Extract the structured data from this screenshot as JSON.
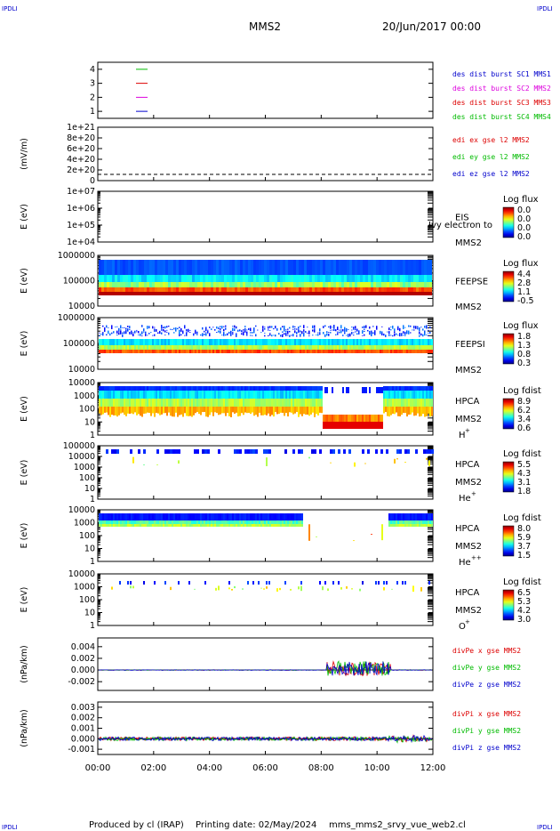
{
  "corner_label": "IPDLI",
  "title": "MMS2",
  "date": "20/Jun/2017 00:00",
  "footer": {
    "produced": "Produced by cl (IRAP)",
    "printing": "Printing date: 02/May/2024",
    "file": "mms_mms2_srvy_vue_web2.cl"
  },
  "chart_data": [
    {
      "type": "line",
      "panel": "burst",
      "ylim": [
        0.5,
        4.5
      ],
      "yticks": [
        "1",
        "2",
        "3",
        "4"
      ],
      "series": [
        {
          "name": "des dist burst SC1 MMS1",
          "color": "#0000cc",
          "y": 1
        },
        {
          "name": "des dist burst SC2 MMS2",
          "color": "#dd00dd",
          "y": 2
        },
        {
          "name": "des dist burst SC3 MMS3",
          "color": "#dd0000",
          "y": 3
        },
        {
          "name": "des dist burst SC4 MMS4",
          "color": "#00bb00",
          "y": 4
        }
      ]
    },
    {
      "type": "line",
      "panel": "edi",
      "ylabel": "(mV/m)",
      "yticks": [
        "0",
        "2e+20",
        "4e+20",
        "6e+20",
        "8e+20",
        "1e+21"
      ],
      "series": [
        {
          "name": "edi ex gse l2 MMS2",
          "color": "#dd0000"
        },
        {
          "name": "edi ey gse l2 MMS2",
          "color": "#00bb00"
        },
        {
          "name": "edi ez gse l2 MMS2",
          "color": "#0000cc"
        }
      ]
    },
    {
      "type": "heatmap",
      "panel": "eis",
      "ylabel": "E (eV)",
      "yticks": [
        "1e+04",
        "1e+05",
        "1e+06",
        "1e+07"
      ],
      "scale": "log",
      "side_label": "EIS",
      "sc_label": "MMS2",
      "overlay_text": "Jvy electron to",
      "colorbar": {
        "title": "Log flux",
        "ticks": [
          "0.0",
          "0.0",
          "0.0",
          "0.0"
        ]
      }
    },
    {
      "type": "heatmap",
      "panel": "feepse",
      "ylabel": "E (eV)",
      "yticks": [
        "10000",
        "100000",
        "1000000"
      ],
      "scale": "log",
      "side_label": "FEEPSE",
      "sc_label": "MMS2",
      "colorbar": {
        "title": "Log flux",
        "ticks": [
          "4.4",
          "2.8",
          "1.1",
          "-0.5"
        ]
      }
    },
    {
      "type": "heatmap",
      "panel": "feepsi",
      "ylabel": "E (eV)",
      "yticks": [
        "10000",
        "100000",
        "1000000"
      ],
      "scale": "log",
      "side_label": "FEEPSI",
      "sc_label": "MMS2",
      "colorbar": {
        "title": "Log flux",
        "ticks": [
          "1.8",
          "1.3",
          "0.8",
          "0.3"
        ]
      }
    },
    {
      "type": "heatmap",
      "panel": "hpca_h",
      "ylabel": "E (eV)",
      "yticks": [
        "1",
        "10",
        "100",
        "1000",
        "10000"
      ],
      "scale": "log",
      "side_label": "HPCA",
      "sc_label": "MMS2",
      "species": "H",
      "charge": "+",
      "colorbar": {
        "title": "Log fdist",
        "ticks": [
          "8.9",
          "6.2",
          "3.4",
          "0.6"
        ]
      }
    },
    {
      "type": "heatmap",
      "panel": "hpca_he",
      "ylabel": "E (eV)",
      "yticks": [
        "1",
        "10",
        "100",
        "1000",
        "10000",
        "100000"
      ],
      "scale": "log",
      "side_label": "HPCA",
      "sc_label": "MMS2",
      "species": "He",
      "charge": "+",
      "colorbar": {
        "title": "Log fdist",
        "ticks": [
          "5.5",
          "4.3",
          "3.1",
          "1.8"
        ]
      }
    },
    {
      "type": "heatmap",
      "panel": "hpca_he2",
      "ylabel": "E (eV)",
      "yticks": [
        "1",
        "10",
        "100",
        "1000",
        "10000"
      ],
      "scale": "log",
      "side_label": "HPCA",
      "sc_label": "MMS2",
      "species": "He",
      "charge": "++",
      "colorbar": {
        "title": "Log fdist",
        "ticks": [
          "8.0",
          "5.9",
          "3.7",
          "1.5"
        ]
      }
    },
    {
      "type": "heatmap",
      "panel": "hpca_o",
      "ylabel": "E (eV)",
      "yticks": [
        "1",
        "10",
        "100",
        "1000",
        "10000"
      ],
      "scale": "log",
      "side_label": "HPCA",
      "sc_label": "MMS2",
      "species": "O",
      "charge": "+",
      "colorbar": {
        "title": "Log fdist",
        "ticks": [
          "6.5",
          "5.3",
          "4.2",
          "3.0"
        ]
      }
    },
    {
      "type": "line",
      "panel": "divpe",
      "ylabel": "(nPa/km)",
      "yticks": [
        "-0.002",
        "0.000",
        "0.002",
        "0.004"
      ],
      "ylim": [
        -0.0035,
        0.0055
      ],
      "series": [
        {
          "name": "divPe x gse MMS2",
          "color": "#dd0000"
        },
        {
          "name": "divPe y gse MMS2",
          "color": "#00bb00"
        },
        {
          "name": "divPe z gse MMS2",
          "color": "#0000cc"
        }
      ]
    },
    {
      "type": "line",
      "panel": "divpi",
      "ylabel": "(nPa/km)",
      "yticks": [
        "-0.001",
        "0.000",
        "0.001",
        "0.002",
        "0.003"
      ],
      "ylim": [
        -0.0015,
        0.0035
      ],
      "series": [
        {
          "name": "divPi x gse MMS2",
          "color": "#dd0000"
        },
        {
          "name": "divPi y gse MMS2",
          "color": "#00bb00"
        },
        {
          "name": "divPi z gse MMS2",
          "color": "#0000cc"
        }
      ]
    }
  ],
  "xaxis": {
    "ticks": [
      "00:00",
      "02:00",
      "04:00",
      "06:00",
      "08:00",
      "10:00",
      "12:00"
    ],
    "range_hours": [
      0,
      12
    ]
  }
}
